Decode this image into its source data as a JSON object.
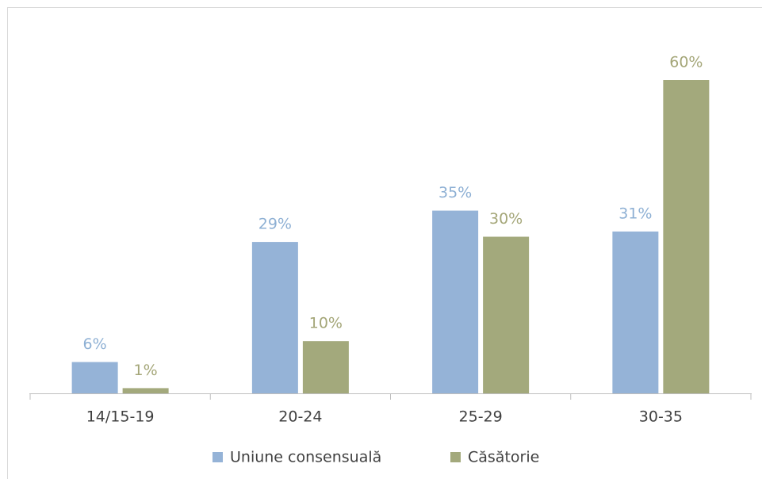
{
  "chart_data": {
    "type": "bar",
    "categories": [
      "14/15-19",
      "20-24",
      "25-29",
      "30-35"
    ],
    "series": [
      {
        "name": "Uniune consensuală",
        "color": "#95b3d7",
        "label_color": "#8eb0d4",
        "values": [
          6,
          29,
          35,
          31
        ],
        "value_labels": [
          "6%",
          "29%",
          "35%",
          "31%"
        ]
      },
      {
        "name": "Căsătorie",
        "color": "#a3a97c",
        "label_color": "#a4a678",
        "values": [
          1,
          10,
          30,
          60
        ],
        "value_labels": [
          "1%",
          "10%",
          "30%",
          "60%"
        ]
      }
    ],
    "legend": "bottom"
  }
}
